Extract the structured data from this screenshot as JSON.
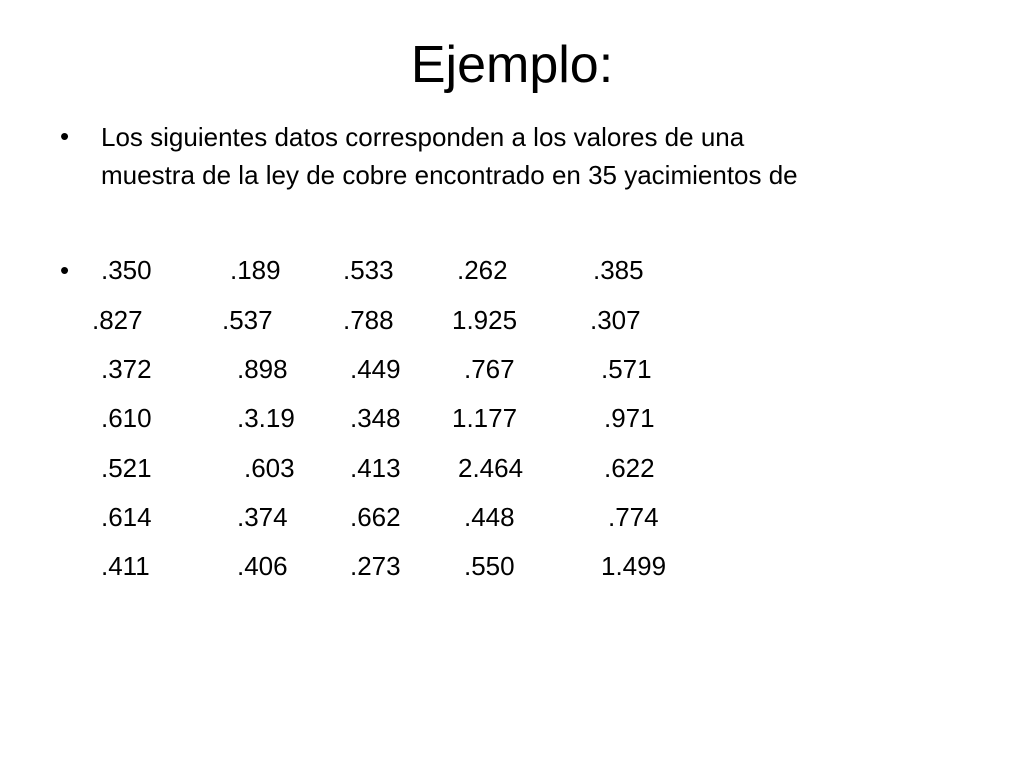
{
  "slide": {
    "title": "Ejemplo:",
    "bullet_glyph": "•",
    "paragraph": "Los siguientes datos corresponden a los valores de una muestra  de la ley de cobre  encontrado en 35 yacimientos de",
    "data_rows": [
      [
        ".350",
        ".189",
        ".533",
        ".262",
        ".385"
      ],
      [
        ".827",
        ".537",
        ".788",
        "1.925",
        ".307"
      ],
      [
        ".372",
        ".898",
        ".449",
        ".767",
        ".571"
      ],
      [
        ".610",
        ".3.19",
        ".348",
        "1.177",
        ".971"
      ],
      [
        ".521",
        ".603",
        ".413",
        "2.464",
        ".622"
      ],
      [
        ".614",
        ".374",
        ".662",
        ".448",
        ".774"
      ],
      [
        ".411",
        ".406",
        ".273",
        ".550",
        "1.499"
      ]
    ]
  }
}
